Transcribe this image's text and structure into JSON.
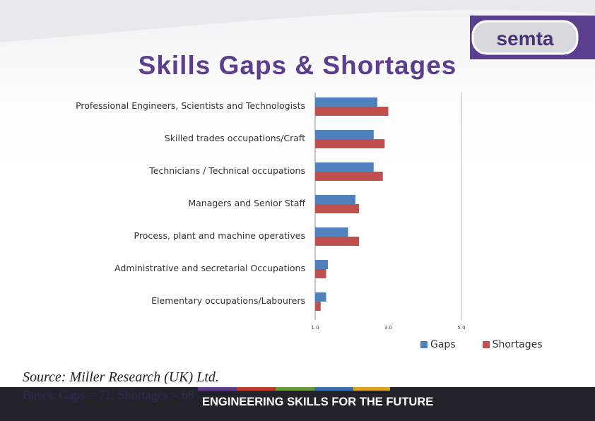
{
  "slide": {
    "title": "Skills Gaps & Shortages",
    "source": "Source: Miller Research (UK) Ltd.",
    "bases": "Bases: Gaps = 71, Shortages = 68",
    "footer": "ENGINEERING SKILLS FOR THE FUTURE"
  },
  "logo": {
    "text": "semta",
    "accent": "#5b3f8e"
  },
  "colors": {
    "title": "#5b3f8e",
    "gaps": "#4f81bd",
    "shortages": "#c0504d",
    "footer_bg": "#23232b"
  },
  "chart_data": {
    "type": "bar",
    "orientation": "horizontal",
    "categories": [
      "Professional Engineers, Scientists and Technologists",
      "Skilled trades occupations/Craft",
      "Technicians / Technical occupations",
      "Managers and Senior Staff",
      "Process, plant and machine operatives",
      "Administrative and secretarial Occupations",
      "Elementary occupations/Labourers"
    ],
    "series": [
      {
        "name": "Gaps",
        "values": [
          2.7,
          2.6,
          2.6,
          2.1,
          1.9,
          1.35,
          1.3
        ]
      },
      {
        "name": "Shortages",
        "values": [
          3.0,
          2.9,
          2.85,
          2.2,
          2.2,
          1.3,
          1.15
        ]
      }
    ],
    "xlim": [
      1.0,
      5.0
    ],
    "xticks": [
      "1.0",
      "3.0",
      "5.0"
    ],
    "legend": "bottom-right",
    "grid": false
  }
}
